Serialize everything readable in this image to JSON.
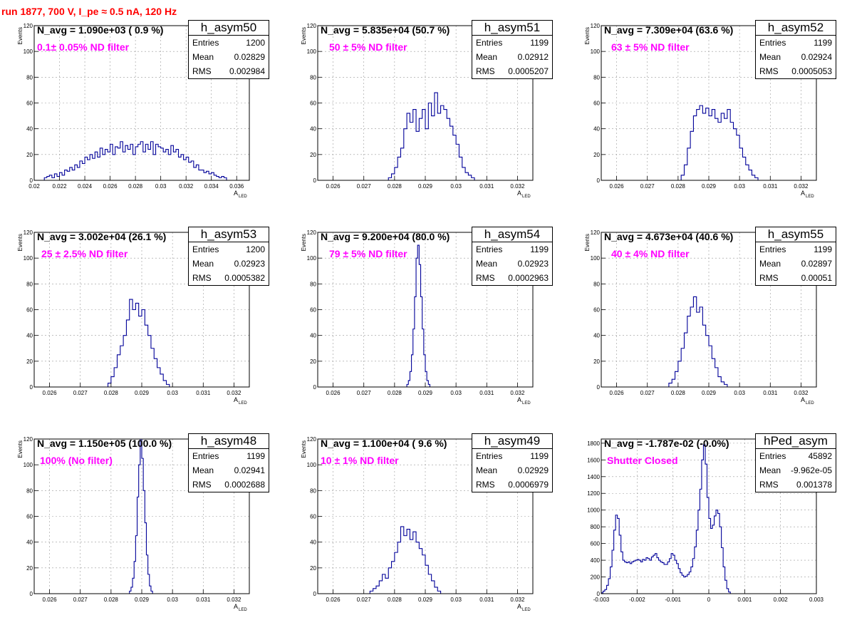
{
  "run_title": "run 1877,   700 V, I_pe ≈ 0.5 nA, 120 Hz",
  "chart_data": [
    {
      "type": "bar",
      "name": "h_asym50",
      "navg": "N_avg = 1.090e+03 ( 0.9 %)",
      "filter": "0.1± 0.05% ND filter",
      "stats": {
        "entries": "1200",
        "mean": "0.02829",
        "rms": "0.002984"
      },
      "xlim": [
        0.02,
        0.037
      ],
      "ylim": [
        0,
        120
      ],
      "xticks": [
        0.02,
        0.022,
        0.024,
        0.026,
        0.028,
        0.03,
        0.032,
        0.034,
        0.036
      ],
      "xticklabels": [
        "0.02",
        "0.022",
        "0.024",
        "0.026",
        "0.028",
        "0.03",
        "0.032",
        "0.034",
        "0.036"
      ],
      "yticks": [
        0,
        20,
        40,
        60,
        80,
        100,
        120
      ],
      "ylabel": "Events",
      "xlabel": "A",
      "xlabel_sub": "LED",
      "bin_start": 0.0208,
      "bin_width": 0.0002,
      "values": [
        2,
        3,
        4,
        2,
        5,
        3,
        6,
        4,
        8,
        7,
        10,
        8,
        12,
        10,
        15,
        13,
        18,
        16,
        20,
        17,
        22,
        18,
        25,
        20,
        24,
        22,
        28,
        20,
        26,
        25,
        30,
        22,
        27,
        24,
        28,
        20,
        26,
        28,
        30,
        22,
        28,
        24,
        30,
        20,
        28,
        26,
        25,
        22,
        24,
        20,
        27,
        22,
        24,
        18,
        20,
        16,
        18,
        14,
        15,
        10,
        12,
        8,
        8,
        6,
        7,
        5,
        6,
        4,
        3,
        2,
        3,
        2
      ]
    },
    {
      "type": "bar",
      "name": "h_asym51",
      "navg": "N_avg = 5.835e+04 (50.7 %)",
      "filter": "50 ± 5% ND filter",
      "stats": {
        "entries": "1199",
        "mean": "0.02912",
        "rms": "0.0005207"
      },
      "xlim": [
        0.0255,
        0.0325
      ],
      "ylim": [
        0,
        120
      ],
      "xticks": [
        0.026,
        0.027,
        0.028,
        0.029,
        0.03,
        0.031,
        0.032
      ],
      "xticklabels": [
        "0.026",
        "0.027",
        "0.028",
        "0.029",
        "0.03",
        "0.031",
        "0.032"
      ],
      "yticks": [
        0,
        20,
        40,
        60,
        80,
        100,
        120
      ],
      "ylabel": "Events",
      "xlabel": "A",
      "xlabel_sub": "LED",
      "bin_start": 0.0278,
      "bin_width": 0.0001,
      "values": [
        2,
        5,
        10,
        18,
        25,
        40,
        52,
        45,
        55,
        38,
        48,
        55,
        40,
        60,
        50,
        68,
        52,
        58,
        55,
        48,
        42,
        35,
        28,
        18,
        10,
        6,
        4,
        2
      ]
    },
    {
      "type": "bar",
      "name": "h_asym52",
      "navg": "N_avg = 7.309e+04 (63.6 %)",
      "filter": "63 ± 5% ND filter",
      "stats": {
        "entries": "1199",
        "mean": "0.02924",
        "rms": "0.0005053"
      },
      "xlim": [
        0.0255,
        0.0325
      ],
      "ylim": [
        0,
        120
      ],
      "xticks": [
        0.026,
        0.027,
        0.028,
        0.029,
        0.03,
        0.031,
        0.032
      ],
      "xticklabels": [
        "0.026",
        "0.027",
        "0.028",
        "0.029",
        "0.03",
        "0.031",
        "0.032"
      ],
      "yticks": [
        0,
        20,
        40,
        60,
        80,
        100,
        120
      ],
      "ylabel": "Events",
      "xlabel": "A",
      "xlabel_sub": "LED",
      "bin_start": 0.0281,
      "bin_width": 0.0001,
      "values": [
        4,
        12,
        25,
        38,
        50,
        55,
        58,
        52,
        56,
        50,
        55,
        48,
        45,
        52,
        48,
        55,
        45,
        40,
        35,
        25,
        18,
        12,
        8,
        4,
        2
      ]
    },
    {
      "type": "bar",
      "name": "h_asym53",
      "navg": "N_avg = 3.002e+04 (26.1 %)",
      "filter": "25 ± 2.5% ND filter",
      "stats": {
        "entries": "1200",
        "mean": "0.02923",
        "rms": "0.0005382"
      },
      "xlim": [
        0.0255,
        0.0325
      ],
      "ylim": [
        0,
        120
      ],
      "xticks": [
        0.026,
        0.027,
        0.028,
        0.029,
        0.03,
        0.031,
        0.032
      ],
      "xticklabels": [
        "0.026",
        "0.027",
        "0.028",
        "0.029",
        "0.03",
        "0.031",
        "0.032"
      ],
      "yticks": [
        0,
        20,
        40,
        60,
        80,
        100,
        120
      ],
      "ylabel": "Events",
      "xlabel": "A",
      "xlabel_sub": "LED",
      "bin_start": 0.0279,
      "bin_width": 0.0001,
      "values": [
        3,
        8,
        15,
        25,
        32,
        40,
        52,
        68,
        60,
        65,
        55,
        60,
        48,
        40,
        30,
        22,
        15,
        10,
        5,
        2
      ]
    },
    {
      "type": "bar",
      "name": "h_asym54",
      "navg": "N_avg = 9.200e+04 (80.0 %)",
      "filter": "79 ± 5% ND filter",
      "stats": {
        "entries": "1199",
        "mean": "0.02923",
        "rms": "0.0002963"
      },
      "xlim": [
        0.0255,
        0.0325
      ],
      "ylim": [
        0,
        120
      ],
      "xticks": [
        0.026,
        0.027,
        0.028,
        0.029,
        0.03,
        0.031,
        0.032
      ],
      "xticklabels": [
        "0.026",
        "0.027",
        "0.028",
        "0.029",
        "0.03",
        "0.031",
        "0.032"
      ],
      "yticks": [
        0,
        20,
        40,
        60,
        80,
        100,
        120
      ],
      "ylabel": "Events",
      "xlabel": "A",
      "xlabel_sub": "LED",
      "bin_start": 0.0284,
      "bin_width": 5e-05,
      "values": [
        2,
        5,
        12,
        25,
        45,
        70,
        100,
        110,
        95,
        70,
        45,
        25,
        12,
        5,
        2
      ]
    },
    {
      "type": "bar",
      "name": "h_asym55",
      "navg": "N_avg = 4.673e+04 (40.6 %)",
      "filter": "40 ± 4% ND filter",
      "stats": {
        "entries": "1199",
        "mean": "0.02897",
        "rms": "0.00051"
      },
      "xlim": [
        0.0255,
        0.0325
      ],
      "ylim": [
        0,
        120
      ],
      "xticks": [
        0.026,
        0.027,
        0.028,
        0.029,
        0.03,
        0.031,
        0.032
      ],
      "xticklabels": [
        "0.026",
        "0.027",
        "0.028",
        "0.029",
        "0.03",
        "0.031",
        "0.032"
      ],
      "yticks": [
        0,
        20,
        40,
        60,
        80,
        100,
        120
      ],
      "ylabel": "Events",
      "xlabel": "A",
      "xlabel_sub": "LED",
      "bin_start": 0.0277,
      "bin_width": 0.0001,
      "values": [
        3,
        6,
        12,
        20,
        30,
        42,
        55,
        62,
        70,
        58,
        62,
        48,
        40,
        32,
        22,
        15,
        8,
        4,
        2
      ]
    },
    {
      "type": "bar",
      "name": "h_asym48",
      "navg": "N_avg = 1.150e+05 (100.0 %)",
      "filter": "100% (No filter)",
      "stats": {
        "entries": "1199",
        "mean": "0.02941",
        "rms": "0.0002688"
      },
      "xlim": [
        0.0255,
        0.0325
      ],
      "ylim": [
        0,
        120
      ],
      "xticks": [
        0.026,
        0.027,
        0.028,
        0.029,
        0.03,
        0.031,
        0.032
      ],
      "xticklabels": [
        "0.026",
        "0.027",
        "0.028",
        "0.029",
        "0.03",
        "0.031",
        "0.032"
      ],
      "yticks": [
        0,
        20,
        40,
        60,
        80,
        100,
        120
      ],
      "ylabel": "Events",
      "xlabel": "A",
      "xlabel_sub": "LED",
      "bin_start": 0.0286,
      "bin_width": 5e-05,
      "values": [
        2,
        5,
        12,
        25,
        45,
        75,
        100,
        120,
        105,
        80,
        55,
        30,
        15,
        6,
        2
      ]
    },
    {
      "type": "bar",
      "name": "h_asym49",
      "navg": "N_avg = 1.100e+04 ( 9.6 %)",
      "filter": "10 ± 1% ND filter",
      "stats": {
        "entries": "1199",
        "mean": "0.02929",
        "rms": "0.0006979"
      },
      "xlim": [
        0.0255,
        0.0325
      ],
      "ylim": [
        0,
        120
      ],
      "xticks": [
        0.026,
        0.027,
        0.028,
        0.029,
        0.03,
        0.031,
        0.032
      ],
      "xticklabels": [
        "0.026",
        "0.027",
        "0.028",
        "0.029",
        "0.03",
        "0.031",
        "0.032"
      ],
      "yticks": [
        0,
        20,
        40,
        60,
        80,
        100,
        120
      ],
      "ylabel": "Events",
      "xlabel": "A",
      "xlabel_sub": "LED",
      "bin_start": 0.0272,
      "bin_width": 0.0001,
      "values": [
        2,
        4,
        6,
        10,
        15,
        12,
        20,
        25,
        32,
        40,
        52,
        45,
        50,
        42,
        48,
        40,
        35,
        30,
        22,
        15,
        10,
        5,
        2
      ]
    },
    {
      "type": "bar",
      "name": "hPed_asym",
      "navg": "N_avg = -1.787e-02 (-0.0%)",
      "filter": "Shutter Closed",
      "stats": {
        "entries": "45892",
        "mean": "-9.962e-05",
        "rms": "0.001378"
      },
      "xlim": [
        -0.003,
        0.003
      ],
      "ylim": [
        0,
        1850
      ],
      "xticks": [
        -0.003,
        -0.002,
        -0.001,
        0,
        0.001,
        0.002,
        0.003
      ],
      "xticklabels": [
        "-0.003",
        "-0.002",
        "-0.001",
        "0",
        "0.001",
        "0.002",
        "0.003"
      ],
      "yticks": [
        0,
        200,
        400,
        600,
        800,
        1000,
        1200,
        1400,
        1600,
        1800
      ],
      "ylabel": "",
      "xlabel": "",
      "xlabel_sub": "",
      "bin_start": -0.003,
      "bin_width": 5e-05,
      "values": [
        10,
        30,
        50,
        100,
        180,
        320,
        520,
        760,
        940,
        900,
        700,
        500,
        400,
        380,
        370,
        380,
        360,
        380,
        390,
        400,
        410,
        400,
        380,
        410,
        400,
        430,
        420,
        400,
        440,
        460,
        480,
        430,
        400,
        380,
        370,
        350,
        350,
        380,
        420,
        480,
        460,
        400,
        360,
        300,
        250,
        220,
        200,
        210,
        230,
        260,
        320,
        420,
        560,
        760,
        1000,
        1250,
        1600,
        1780,
        1550,
        1150,
        900,
        780,
        820,
        930,
        1000,
        960,
        800,
        550,
        320,
        160,
        60,
        20
      ]
    }
  ]
}
